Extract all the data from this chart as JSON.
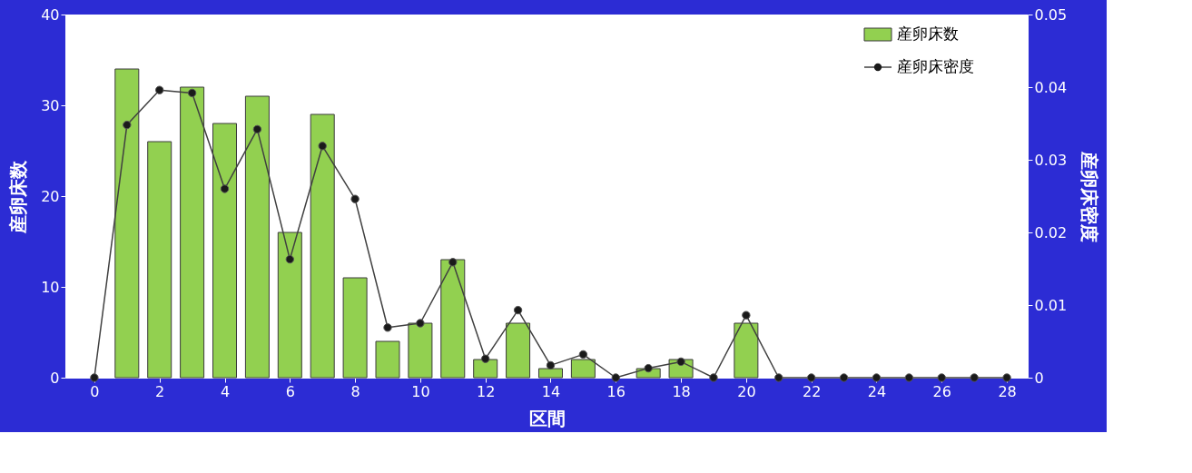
{
  "chart_data": {
    "type": "bar",
    "xlabel": "区間",
    "ylabel": "産卵床数",
    "y2label": "産卵床密度",
    "x": [
      0,
      1,
      2,
      3,
      4,
      5,
      6,
      7,
      8,
      9,
      10,
      11,
      12,
      13,
      14,
      15,
      16,
      17,
      18,
      19,
      20,
      21,
      22,
      23,
      24,
      25,
      26,
      27,
      28
    ],
    "series": [
      {
        "name": "産卵床数",
        "type": "bar",
        "color": "#92d050",
        "values": [
          0,
          34,
          26,
          32,
          28,
          31,
          16,
          29,
          11,
          4,
          6,
          13,
          2,
          6,
          1,
          2,
          0,
          1,
          2,
          0,
          6,
          0,
          0,
          0,
          0,
          0,
          0,
          0,
          0
        ]
      },
      {
        "name": "産卵床密度",
        "type": "line",
        "axis": "y2",
        "color": "#404040",
        "marker": "circle",
        "values": [
          0,
          0.0348,
          0.0396,
          0.0392,
          0.026,
          0.0342,
          0.0163,
          0.0319,
          0.0246,
          0.0069,
          0.0075,
          0.0159,
          0.0026,
          0.0093,
          0.0017,
          0.0032,
          0,
          0.0013,
          0.0022,
          0,
          0.0086,
          0,
          0,
          0,
          0,
          0,
          0,
          0,
          0
        ]
      }
    ],
    "xlim": [
      -0.75,
      28.5
    ],
    "xticks": [
      0,
      2,
      4,
      6,
      8,
      10,
      12,
      14,
      16,
      18,
      20,
      22,
      24,
      26,
      28
    ],
    "ylim": [
      0,
      40
    ],
    "yticks": [
      0,
      10,
      20,
      30,
      40
    ],
    "y2lim": [
      0,
      0.05
    ],
    "y2ticks": [
      0,
      0.01,
      0.02,
      0.03,
      0.04,
      0.05
    ],
    "grid": false,
    "legend": "top right"
  }
}
